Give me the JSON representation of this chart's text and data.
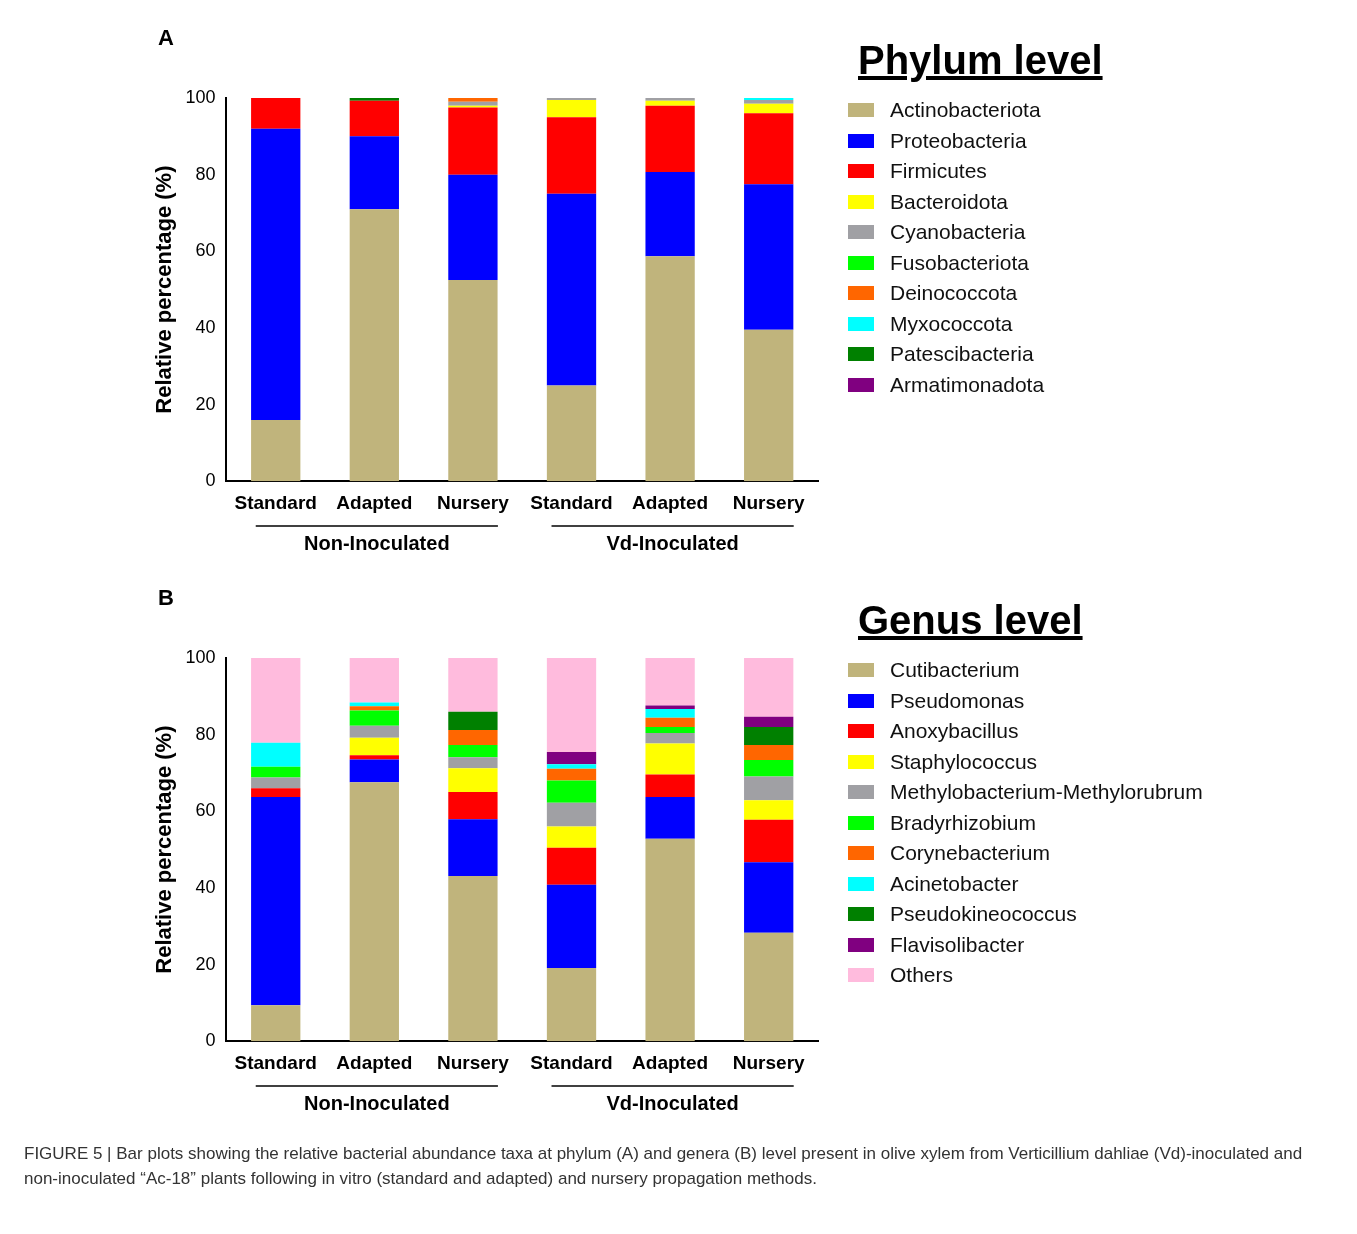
{
  "chart_data": [
    {
      "type": "bar",
      "stacked": true,
      "ylabel": "Relative percentage (%)",
      "legend_title": "Phylum level",
      "legend": "right",
      "grid": false,
      "categories": [
        "Standard",
        "Adapted",
        "Nursery",
        "Standard",
        "Adapted",
        "Nursery"
      ],
      "ylim": [
        0,
        100
      ],
      "yticks": [
        0,
        20,
        40,
        60,
        80,
        100
      ],
      "annotations": [
        "A",
        "Non-Inoculated",
        "Vd-Inoculated"
      ],
      "series": [
        {
          "name": "Actinobacteriota",
          "color": "#c0b47c",
          "values": [
            16,
            71,
            52.5,
            25,
            58.7,
            39.5
          ]
        },
        {
          "name": "Proteobacteria",
          "color": "#0000ff",
          "values": [
            76,
            19,
            27.5,
            50,
            22,
            38
          ]
        },
        {
          "name": "Firmicutes",
          "color": "#ff0000",
          "values": [
            8,
            9.3,
            17.5,
            20,
            17.3,
            18.5
          ]
        },
        {
          "name": "Bacteroidota",
          "color": "#ffff00",
          "values": [
            0,
            0,
            0.5,
            4.5,
            1.3,
            2.5
          ]
        },
        {
          "name": "Cyanobacteria",
          "color": "#a0a0a4",
          "values": [
            0,
            0,
            1,
            0.5,
            0.7,
            1
          ]
        },
        {
          "name": "Fusobacteriota",
          "color": "#00ff00",
          "values": [
            0,
            0,
            0,
            0,
            0,
            0
          ]
        },
        {
          "name": "Deinococcota",
          "color": "#ff6600",
          "values": [
            0,
            0,
            1,
            0,
            0,
            0
          ]
        },
        {
          "name": "Myxococcota",
          "color": "#00ffff",
          "values": [
            0,
            0,
            0,
            0,
            0,
            0.5
          ]
        },
        {
          "name": "Patescibacteria",
          "color": "#008000",
          "values": [
            0,
            0.7,
            0,
            0,
            0,
            0
          ]
        },
        {
          "name": "Armatimonadota",
          "color": "#800080",
          "values": [
            0,
            0,
            0,
            0,
            0,
            0
          ]
        }
      ]
    },
    {
      "type": "bar",
      "stacked": true,
      "ylabel": "Relative percentage (%)",
      "legend_title": "Genus level",
      "legend": "right",
      "grid": false,
      "categories": [
        "Standard",
        "Adapted",
        "Nursery",
        "Standard",
        "Adapted",
        "Nursery"
      ],
      "ylim": [
        0,
        100
      ],
      "yticks": [
        0,
        20,
        40,
        60,
        80,
        100
      ],
      "annotations": [
        "B",
        "Non-Inoculated",
        "Vd-Inoculated",
        "FIGURE 5 | Bar plots showing the relative bacterial abundance taxa at phylum (A) and genera (B) level present in olive xylem from Verticillium dahliae (Vd)-inoculated and non-inoculated “Ac-18” plants following in vitro (standard and adapted) and nursery propagation methods."
      ],
      "series": [
        {
          "name": "Cutibacterium",
          "color": "#c0b47c",
          "values": [
            9.4,
            67.6,
            43.1,
            19.1,
            52.8,
            28.3
          ]
        },
        {
          "name": "Pseudomonas",
          "color": "#0000ff",
          "values": [
            54.3,
            5.9,
            14.8,
            21.7,
            10.9,
            18.4
          ]
        },
        {
          "name": "Anoxybacillus",
          "color": "#ff0000",
          "values": [
            2.3,
            1.1,
            7.1,
            9.7,
            5.9,
            11.1
          ]
        },
        {
          "name": "Staphylococcus",
          "color": "#ffff00",
          "values": [
            0,
            4.6,
            6.2,
            5.5,
            8.1,
            5.1
          ]
        },
        {
          "name": "Methylobacterium-Methylorubrum",
          "color": "#a0a0a4",
          "values": [
            2.8,
            3.1,
            2.9,
            6.2,
            2.7,
            6.2
          ]
        },
        {
          "name": "Bradyrhizobium",
          "color": "#00ff00",
          "values": [
            2.8,
            4,
            3.2,
            5.8,
            1.6,
            4.3
          ]
        },
        {
          "name": "Corynebacterium",
          "color": "#ff6600",
          "values": [
            0,
            1.1,
            3.9,
            3.1,
            2.4,
            3.9
          ]
        },
        {
          "name": "Acinetobacter",
          "color": "#00ffff",
          "values": [
            6.3,
            1,
            0,
            1.2,
            2.3,
            0
          ]
        },
        {
          "name": "Pseudokineococcus",
          "color": "#008000",
          "values": [
            0,
            0,
            4.8,
            0,
            0,
            4.7
          ]
        },
        {
          "name": "Flavisolibacter",
          "color": "#800080",
          "values": [
            0,
            0,
            0,
            3.2,
            0.9,
            2.7
          ]
        },
        {
          "name": "Others",
          "color": "#ffbbdd",
          "values": [
            22.1,
            11.6,
            14,
            24.5,
            12.4,
            15.3
          ]
        }
      ]
    }
  ]
}
